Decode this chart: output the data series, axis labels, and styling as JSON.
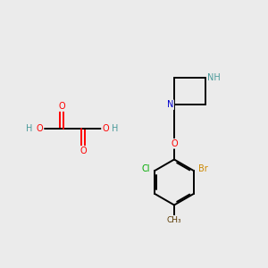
{
  "bg_color": "#ebebeb",
  "bond_color": "#000000",
  "bond_lw": 1.4,
  "atom_colors": {
    "O": "#ff0000",
    "N": "#0000cc",
    "H": "#4a9a9a",
    "Cl": "#00aa00",
    "Br": "#cc8800",
    "C": "#000000"
  },
  "fs": 6.5
}
